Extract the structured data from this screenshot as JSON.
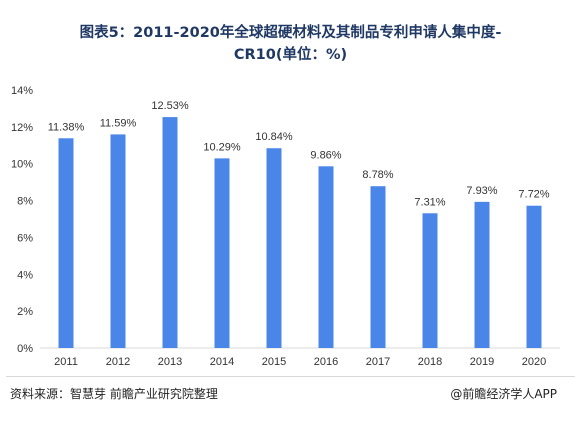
{
  "title_line1": "图表5：2011-2020年全球超硬材料及其制品专利申请人集中度-",
  "title_line2": "CR10(单位：%)",
  "source_text": "资料来源：智慧芽 前瞻产业研究院整理",
  "brand_text": "@前瞻经济学人APP",
  "colors": {
    "bar": "#4a86e8",
    "axis_text": "#333333",
    "gridline": "#d9d9d9",
    "title": "#1f3864"
  },
  "chart_data": {
    "type": "bar",
    "categories": [
      "2011",
      "2012",
      "2013",
      "2014",
      "2015",
      "2016",
      "2017",
      "2018",
      "2019",
      "2020"
    ],
    "values": [
      11.38,
      11.59,
      12.53,
      10.29,
      10.84,
      9.86,
      8.78,
      7.31,
      7.93,
      7.72
    ],
    "data_labels": [
      "11.38%",
      "11.59%",
      "12.53%",
      "10.29%",
      "10.84%",
      "9.86%",
      "8.78%",
      "7.31%",
      "7.93%",
      "7.72%"
    ],
    "yticks": [
      "0%",
      "2%",
      "4%",
      "6%",
      "8%",
      "10%",
      "12%",
      "14%"
    ],
    "ylim": [
      0,
      14
    ],
    "xlabel": "",
    "ylabel": "",
    "grid": false,
    "legend": "none"
  }
}
